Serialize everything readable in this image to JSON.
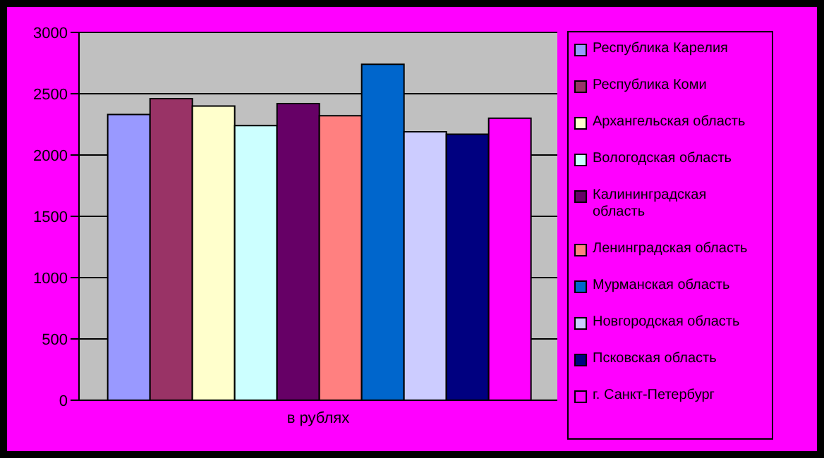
{
  "chart_data": {
    "type": "bar",
    "categories": [
      "в рублях"
    ],
    "series": [
      {
        "name": "Республика Карелия",
        "color": "#9999ff",
        "values": [
          2330
        ]
      },
      {
        "name": "Республика Коми",
        "color": "#993366",
        "values": [
          2460
        ]
      },
      {
        "name": "Архангельская область",
        "color": "#ffffcc",
        "values": [
          2400
        ]
      },
      {
        "name": "Вологодская область",
        "color": "#ccffff",
        "values": [
          2240
        ]
      },
      {
        "name": "Калининградская область",
        "color": "#660066",
        "values": [
          2420
        ]
      },
      {
        "name": "Ленинградская область",
        "color": "#ff8080",
        "values": [
          2320
        ]
      },
      {
        "name": "Мурманская область",
        "color": "#0066cc",
        "values": [
          2740
        ]
      },
      {
        "name": "Новгородская область",
        "color": "#ccccff",
        "values": [
          2190
        ]
      },
      {
        "name": "Псковская область",
        "color": "#000080",
        "values": [
          2170
        ]
      },
      {
        "name": "г. Санкт-Петербург",
        "color": "#ff00ff",
        "values": [
          2300
        ]
      }
    ],
    "ylim": [
      0,
      3000
    ],
    "yticks": [
      0,
      500,
      1000,
      1500,
      2000,
      2500,
      3000
    ],
    "grid": "y",
    "legend": "right"
  }
}
